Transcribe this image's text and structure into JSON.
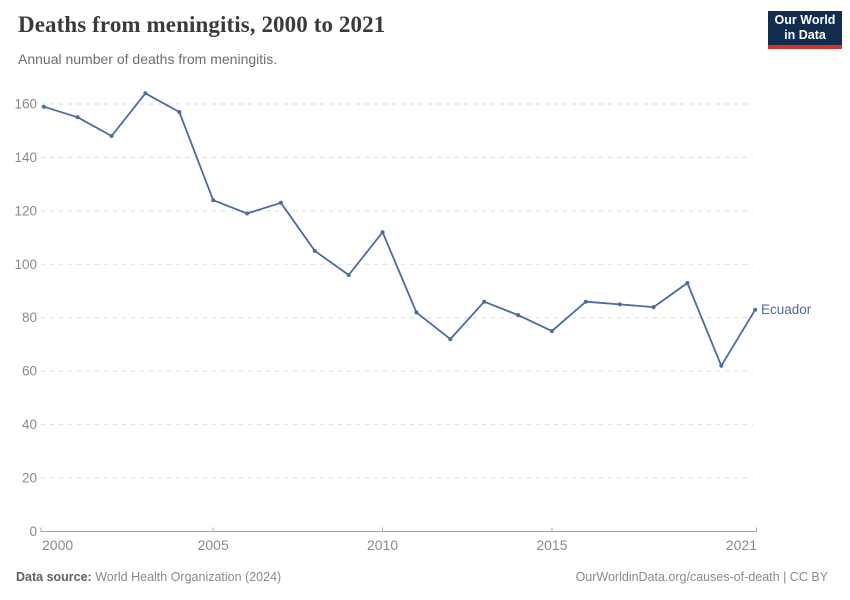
{
  "header": {
    "title": "Deaths from meningitis, 2000 to 2021",
    "subtitle": "Annual number of deaths from meningitis.",
    "logo": {
      "line1": "Our World",
      "line2": "in Data",
      "bg_color": "#112e51",
      "accent_color": "#d0342c"
    }
  },
  "chart_data": {
    "type": "line",
    "title": "Deaths from meningitis, 2000 to 2021",
    "entity_label": "Ecuador",
    "x": [
      2000,
      2001,
      2002,
      2003,
      2004,
      2005,
      2006,
      2007,
      2008,
      2009,
      2010,
      2011,
      2012,
      2013,
      2014,
      2015,
      2016,
      2017,
      2018,
      2019,
      2020,
      2021
    ],
    "series": [
      {
        "name": "Ecuador",
        "color": "#4c6b9f",
        "values": [
          159,
          155,
          148,
          164,
          157,
          124,
          119,
          123,
          105,
          96,
          112,
          82,
          72,
          86,
          81,
          75,
          86,
          85,
          84,
          93,
          62,
          83
        ]
      }
    ],
    "xticks": [
      2000,
      2005,
      2010,
      2015,
      2021
    ],
    "yticks": [
      0,
      20,
      40,
      60,
      80,
      100,
      120,
      140,
      160
    ],
    "ylim": [
      0,
      165
    ],
    "xlabel": "",
    "ylabel": "",
    "grid": "horizontal-dashed",
    "legend_position": "end-of-line",
    "colors": {
      "grid": "#dcdcdc",
      "axis": "#a8a8a8",
      "tick_text": "#8a8a8a"
    }
  },
  "footer": {
    "source_label": "Data source:",
    "source_text": " World Health Organization (2024)",
    "link_text": "OurWorldinData.org/causes-of-death | CC BY"
  }
}
